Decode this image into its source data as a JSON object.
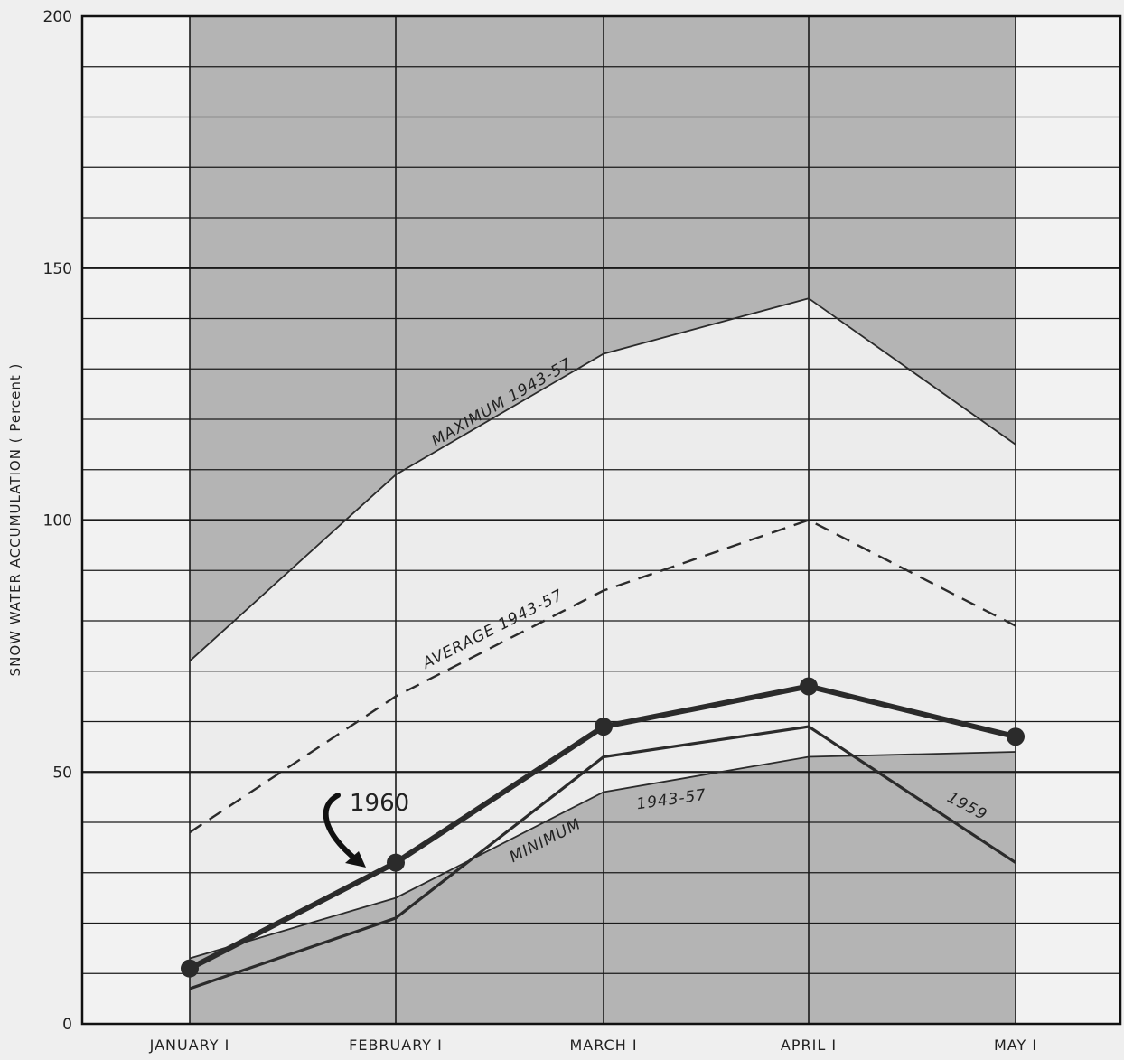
{
  "chart_data": {
    "type": "line",
    "title": "",
    "xlabel": "",
    "ylabel": "SNOW WATER ACCUMULATION ( Percent )",
    "categories": [
      "JANUARY I",
      "FEBRUARY I",
      "MARCH I",
      "APRIL I",
      "MAY I"
    ],
    "ylim": [
      0,
      200
    ],
    "y_ticks": [
      "0",
      "50",
      "100",
      "150",
      "200"
    ],
    "grid": true,
    "series": [
      {
        "name": "MAXIMUM 1943-57",
        "values": [
          72,
          109,
          133,
          144,
          115
        ],
        "style": "thin-solid"
      },
      {
        "name": "AVERAGE 1943-57",
        "values": [
          38,
          65,
          86,
          100,
          79
        ],
        "style": "dashed"
      },
      {
        "name": "MINIMUM 1943-57",
        "values": [
          13,
          25,
          46,
          53,
          54
        ],
        "style": "thin-solid"
      },
      {
        "name": "1960",
        "values": [
          11,
          32,
          59,
          67,
          57
        ],
        "style": "bold-with-markers"
      },
      {
        "name": "1959",
        "values": [
          7,
          21,
          53,
          59,
          32
        ],
        "style": "medium-solid"
      }
    ],
    "annotations": {
      "maximum": "MAXIMUM 1943-57",
      "average": "AVERAGE 1943-57",
      "minimum_word": "MINIMUM",
      "minimum_years": "1943-57",
      "year_1960": "1960",
      "year_1959": "1959"
    },
    "colors": {
      "band_dark": "#b4b4b4",
      "band_light": "#ececec",
      "outside": "#f2f2f2",
      "line": "#2b2b2b"
    }
  }
}
